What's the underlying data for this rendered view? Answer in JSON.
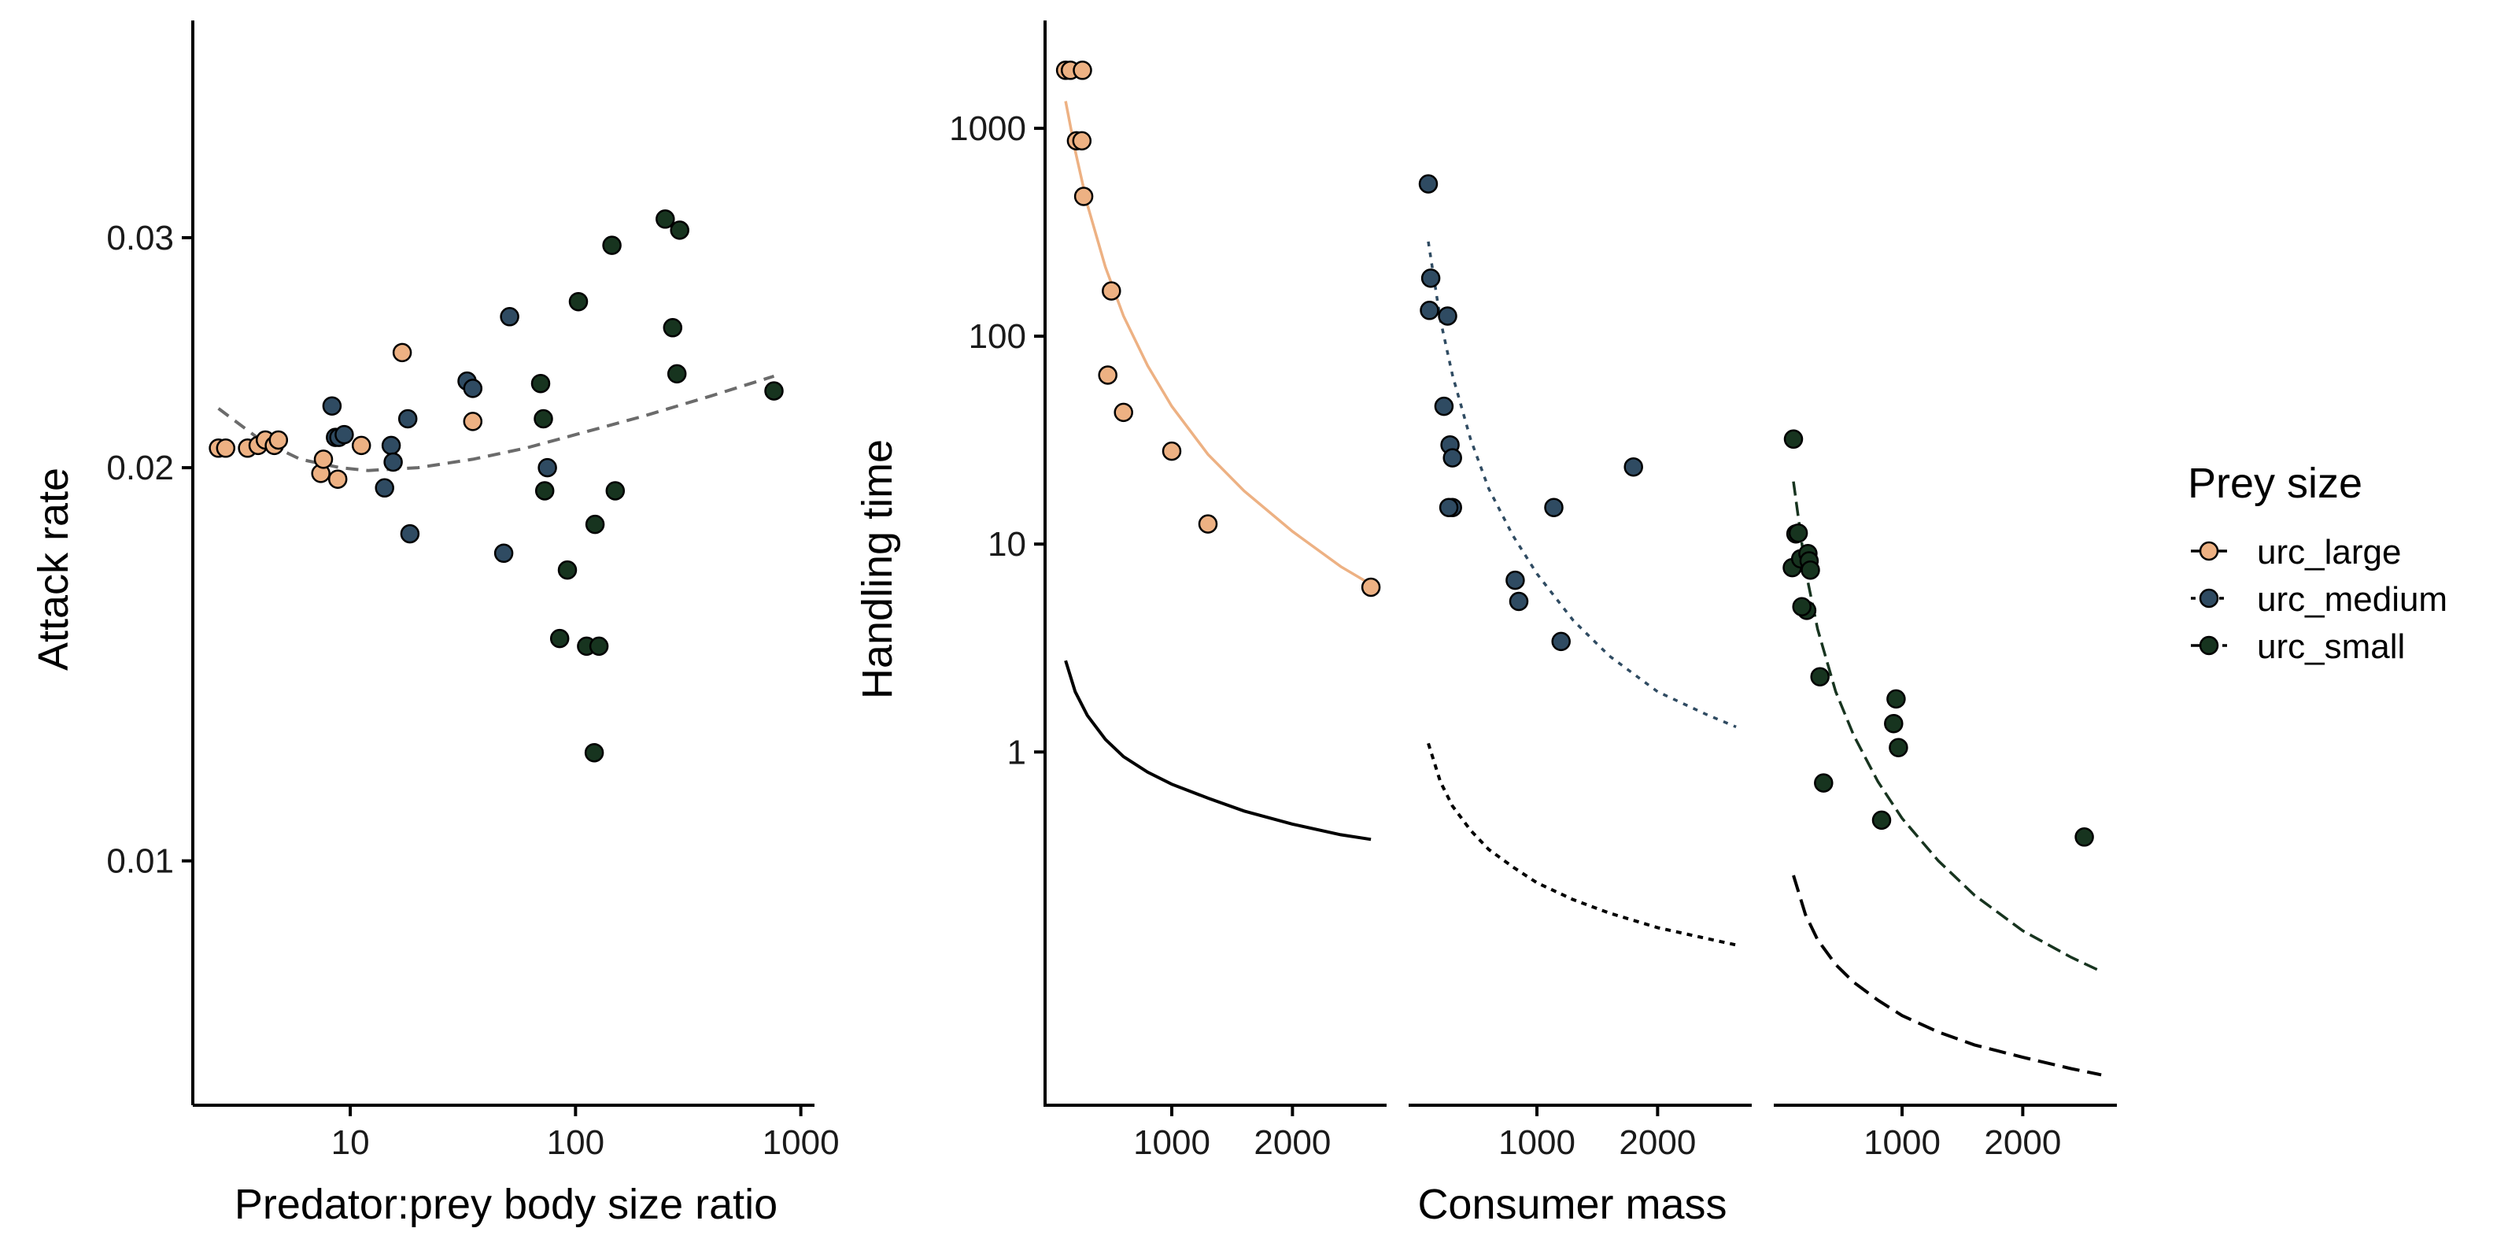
{
  "colors": {
    "urc_large": "#EDB183",
    "urc_medium": "#2F4B62",
    "urc_small": "#17341F",
    "trend": "#6b6b6b",
    "reference": "#000000"
  },
  "legend": {
    "title": "Prey size",
    "entries": [
      "urc_large",
      "urc_medium",
      "urc_small"
    ]
  },
  "chart_data": [
    {
      "type": "scatter",
      "title": "",
      "xlabel": "Predator:prey body size ratio",
      "ylabel": "Attack rate",
      "x_scale": "log",
      "y_scale": "log",
      "xlim": [
        2,
        1150
      ],
      "ylim": [
        0.0065,
        0.044
      ],
      "x_ticks": [
        10,
        100,
        1000
      ],
      "x_tick_labels": [
        "10",
        "100",
        "1000"
      ],
      "y_ticks": [
        0.01,
        0.02,
        0.03
      ],
      "y_tick_labels": [
        "0.01",
        "0.02",
        "0.03"
      ],
      "grid": false,
      "legend_position": "right",
      "series": [
        {
          "name": "urc_large",
          "x": [
            2.6,
            2.8,
            3.5,
            3.9,
            4.2,
            4.6,
            4.8,
            7.4,
            7.6,
            8.8,
            11.2,
            17.0,
            35.0
          ],
          "y": [
            0.0207,
            0.0207,
            0.0207,
            0.0208,
            0.021,
            0.0208,
            0.021,
            0.0198,
            0.0203,
            0.0196,
            0.0208,
            0.0245,
            0.0217
          ]
        },
        {
          "name": "urc_medium",
          "x": [
            8.3,
            8.6,
            8.9,
            9.4,
            14.2,
            15.2,
            15.5,
            18.0,
            18.4,
            33.0,
            35.0,
            48.0,
            51.0,
            75.0
          ],
          "y": [
            0.0223,
            0.0211,
            0.0211,
            0.0212,
            0.0193,
            0.0208,
            0.0202,
            0.0218,
            0.0178,
            0.0233,
            0.023,
            0.0172,
            0.0261,
            0.02
          ]
        },
        {
          "name": "urc_small",
          "x": [
            70,
            72,
            73,
            85,
            92,
            103,
            112,
            121,
            122,
            127,
            145,
            150,
            250,
            270,
            282,
            290,
            760
          ],
          "y": [
            0.0232,
            0.0218,
            0.0192,
            0.0148,
            0.0167,
            0.0268,
            0.0146,
            0.0121,
            0.0181,
            0.0146,
            0.0296,
            0.0192,
            0.031,
            0.0256,
            0.0236,
            0.0304,
            0.0229
          ]
        },
        {
          "name": "trend",
          "x": [
            2.6,
            4,
            6,
            9,
            12,
            20,
            35,
            60,
            100,
            200,
            400,
            760
          ],
          "y": [
            0.0222,
            0.021,
            0.0203,
            0.02,
            0.0199,
            0.02,
            0.0203,
            0.0207,
            0.0212,
            0.0219,
            0.0227,
            0.0235
          ]
        }
      ]
    },
    {
      "type": "scatter",
      "title": "",
      "xlabel": "Consumer mass",
      "ylabel": "Handling time",
      "x_scale": "linear",
      "y_scale": "log",
      "ylim": [
        0.02,
        3300
      ],
      "y_ticks": [
        1,
        10,
        100,
        1000
      ],
      "y_tick_labels": [
        "1",
        "10",
        "100",
        "1000"
      ],
      "x_ticks": [
        1000,
        2000
      ],
      "x_tick_labels": [
        "1000",
        "2000"
      ],
      "grid": false,
      "panels": [
        {
          "name": "urc_large",
          "xlim": [
            -50,
            2780
          ],
          "points": {
            "x": [
              120,
              160,
              260,
              210,
              255,
              270,
              500,
              470,
              600,
              1000,
              1300,
              2650
            ],
            "y": [
              1900,
              1900,
              1900,
              870,
              870,
              470,
              165,
              65,
              43,
              28,
              12.5,
              6.2
            ]
          },
          "fit": {
            "x": [
              120,
              200,
              300,
              450,
              600,
              800,
              1000,
              1300,
              1600,
              2000,
              2400,
              2650
            ],
            "y": [
              1350,
              780,
              430,
              215,
              125,
              72,
              46,
              27,
              18,
              11.5,
              7.8,
              6.4
            ]
          },
          "reference": {
            "x": [
              120,
              200,
              300,
              450,
              600,
              800,
              1000,
              1300,
              1600,
              2000,
              2400,
              2650
            ],
            "y": [
              2.75,
              1.95,
              1.5,
              1.15,
              0.95,
              0.8,
              0.7,
              0.6,
              0.52,
              0.45,
              0.4,
              0.38
            ]
          }
        },
        {
          "name": "urc_medium",
          "xlim": [
            -50,
            2780
          ],
          "points": {
            "x": [
              100,
              120,
              110,
              260,
              230,
              280,
              300,
              300,
              270,
              820,
              850,
              1140,
              1200,
              1800
            ],
            "y": [
              540,
              190,
              133,
              125,
              46,
              30,
              26,
              15,
              15,
              6.7,
              5.3,
              15,
              3.4,
              23.5
            ]
          },
          "fit": {
            "x": [
              100,
              200,
              300,
              450,
              600,
              800,
              1000,
              1300,
              1600,
              2000,
              2400,
              2650
            ],
            "y": [
              285,
              120,
              65,
              32,
              18.5,
              11,
              7.2,
              4.3,
              2.9,
              1.95,
              1.52,
              1.32
            ]
          },
          "reference": {
            "x": [
              100,
              200,
              300,
              450,
              600,
              800,
              1000,
              1300,
              1600,
              2000,
              2400,
              2650
            ],
            "y": [
              1.1,
              0.72,
              0.55,
              0.42,
              0.34,
              0.28,
              0.235,
              0.195,
              0.168,
              0.143,
              0.127,
              0.118
            ]
          }
        },
        {
          "name": "urc_small",
          "xlim": [
            -50,
            2780
          ],
          "points": {
            "x": [
              100,
              120,
              140,
              90,
              160,
              220,
              230,
              240,
              210,
              170,
              320,
              350,
              950,
              970,
              930,
              830,
              2510
            ],
            "y": [
              32,
              11.2,
              11.3,
              7.7,
              8.5,
              9,
              8.3,
              7.5,
              4.8,
              5,
              2.3,
              0.71,
              1.8,
              1.05,
              1.37,
              0.47,
              0.39
            ]
          },
          "fit": {
            "x": [
              100,
              200,
              300,
              450,
              600,
              800,
              1000,
              1300,
              1600,
              2000,
              2400,
              2650
            ],
            "y": [
              20,
              7.5,
              3.9,
              1.95,
              1.2,
              0.72,
              0.48,
              0.3,
              0.205,
              0.138,
              0.103,
              0.088
            ]
          },
          "reference": {
            "x": [
              100,
              200,
              300,
              450,
              600,
              800,
              1000,
              1300,
              1600,
              2000,
              2400,
              2650
            ],
            "y": [
              0.255,
              0.165,
              0.125,
              0.095,
              0.078,
              0.064,
              0.054,
              0.045,
              0.039,
              0.034,
              0.03,
              0.028
            ]
          }
        }
      ]
    }
  ]
}
